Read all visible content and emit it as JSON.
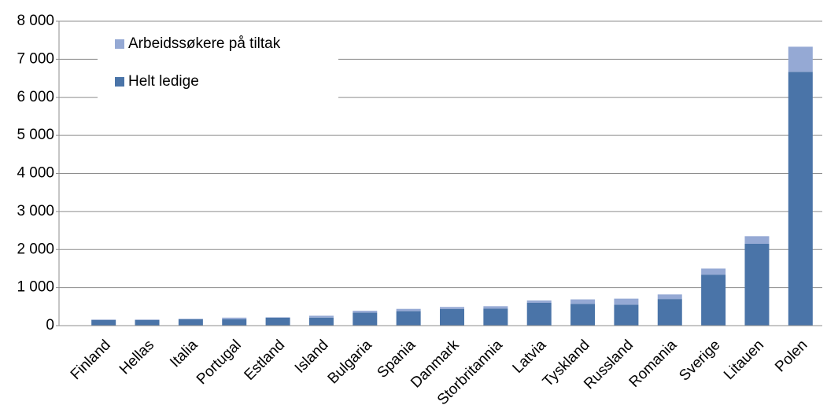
{
  "chart_data": {
    "type": "stacked_bar",
    "categories": [
      "Finland",
      "Hellas",
      "Italia",
      "Portugal",
      "Estland",
      "Island",
      "Bulgaria",
      "Spania",
      "Danmark",
      "Storbritannia",
      "Latvia",
      "Tyskland",
      "Russland",
      "Romania",
      "Sverige",
      "Litauen",
      "Polen"
    ],
    "series": [
      {
        "name": "Helt ledige",
        "color": "#4a74a8",
        "values": [
          150,
          150,
          170,
          170,
          210,
          210,
          340,
          380,
          440,
          450,
          600,
          570,
          550,
          700,
          1340,
          2150,
          6670
        ]
      },
      {
        "name": "Arbeidssøkere på tiltak",
        "color": "#95a9d4",
        "values": [
          10,
          10,
          10,
          40,
          10,
          50,
          50,
          60,
          50,
          60,
          60,
          120,
          160,
          120,
          160,
          200,
          660
        ]
      }
    ],
    "ylim": [
      0,
      8000
    ],
    "yticks": [
      0,
      {
        "value": 1000,
        "label": "1 000"
      },
      {
        "value": 2000,
        "label": "2 000"
      },
      {
        "value": 3000,
        "label": "3 000"
      },
      {
        "value": 4000,
        "label": "4 000"
      },
      {
        "value": 5000,
        "label": "5 000"
      },
      {
        "value": 6000,
        "label": "6 000"
      },
      {
        "value": 7000,
        "label": "7 000"
      },
      {
        "value": 8000,
        "label": "8 000"
      }
    ],
    "grid": true,
    "legend": "top-left"
  }
}
